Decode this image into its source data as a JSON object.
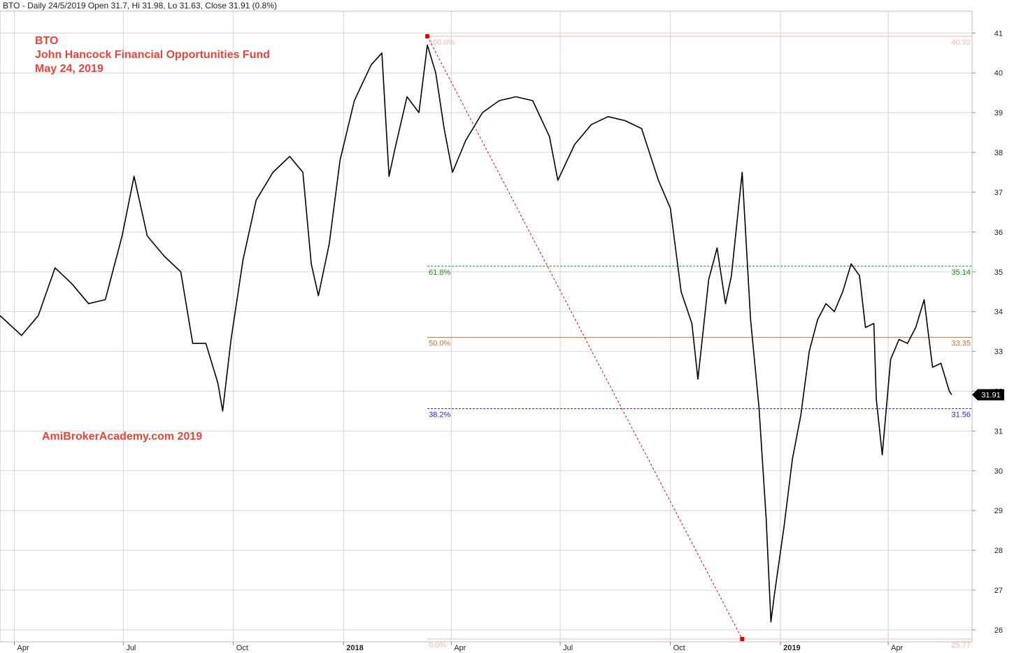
{
  "header": "BTO - Daily 24/5/2019 Open 31.7, Hi 31.98, Lo 31.63, Close 31.91 (0.8%)",
  "annotations": {
    "ticker": "BTO",
    "fund_name": "John Hancock Financial Opportunities Fund",
    "date": "May 24, 2019",
    "watermark": "AmiBrokerAcademy.com  2019"
  },
  "colors": {
    "price": "#000000",
    "grid": "#d4d4d4",
    "fib_100": "#ffb3b3",
    "fib_618": "#1a8f1a",
    "fib_50": "#c87533",
    "fib_382": "#2323d8",
    "fib_0": "#ffb3b3",
    "fib_connector": "#e00000",
    "annotation": "#e8443a",
    "last_price_bg": "#000000"
  },
  "chart_data": {
    "type": "line",
    "title": "",
    "xlabel": "",
    "ylabel": "",
    "ylim": [
      25.7,
      41.55
    ],
    "y_ticks": [
      "26",
      "27",
      "28",
      "29",
      "30",
      "31",
      "32",
      "33",
      "34",
      "35",
      "36",
      "37",
      "38",
      "39",
      "40",
      "41"
    ],
    "x_ticks": [
      {
        "label": "Apr",
        "date": "2017-04-01"
      },
      {
        "label": "Jul",
        "date": "2017-07-01"
      },
      {
        "label": "Oct",
        "date": "2017-10-01"
      },
      {
        "label": "2018",
        "date": "2018-01-01",
        "bold": true
      },
      {
        "label": "Apr",
        "date": "2018-04-01"
      },
      {
        "label": "Jul",
        "date": "2018-07-01"
      },
      {
        "label": "Oct",
        "date": "2018-10-01"
      },
      {
        "label": "2019",
        "date": "2019-01-01",
        "bold": true
      },
      {
        "label": "Apr",
        "date": "2019-04-01"
      }
    ],
    "x_range": [
      "2017-03-20",
      "2019-06-10"
    ],
    "series": [
      {
        "points": [
          [
            "2017-03-20",
            33.9
          ],
          [
            "2017-04-07",
            33.4
          ],
          [
            "2017-04-21",
            33.9
          ],
          [
            "2017-05-05",
            35.1
          ],
          [
            "2017-05-19",
            34.7
          ],
          [
            "2017-06-02",
            34.2
          ],
          [
            "2017-06-16",
            34.3
          ],
          [
            "2017-06-30",
            35.9
          ],
          [
            "2017-07-10",
            37.4
          ],
          [
            "2017-07-21",
            35.9
          ],
          [
            "2017-08-04",
            35.4
          ],
          [
            "2017-08-18",
            35.0
          ],
          [
            "2017-08-28",
            33.2
          ],
          [
            "2017-09-08",
            33.2
          ],
          [
            "2017-09-18",
            32.2
          ],
          [
            "2017-09-22",
            31.5
          ],
          [
            "2017-09-29",
            33.3
          ],
          [
            "2017-10-09",
            35.3
          ],
          [
            "2017-10-20",
            36.8
          ],
          [
            "2017-11-03",
            37.5
          ],
          [
            "2017-11-17",
            37.9
          ],
          [
            "2017-11-28",
            37.5
          ],
          [
            "2017-12-05",
            35.2
          ],
          [
            "2017-12-11",
            34.4
          ],
          [
            "2017-12-20",
            35.7
          ],
          [
            "2017-12-29",
            37.8
          ],
          [
            "2018-01-10",
            39.3
          ],
          [
            "2018-01-24",
            40.2
          ],
          [
            "2018-02-02",
            40.5
          ],
          [
            "2018-02-08",
            37.4
          ],
          [
            "2018-02-13",
            38.1
          ],
          [
            "2018-02-23",
            39.4
          ],
          [
            "2018-03-05",
            39.0
          ],
          [
            "2018-03-12",
            40.7
          ],
          [
            "2018-03-19",
            40.0
          ],
          [
            "2018-03-26",
            38.6
          ],
          [
            "2018-04-02",
            37.5
          ],
          [
            "2018-04-13",
            38.3
          ],
          [
            "2018-04-27",
            39.0
          ],
          [
            "2018-05-11",
            39.3
          ],
          [
            "2018-05-25",
            39.4
          ],
          [
            "2018-06-08",
            39.3
          ],
          [
            "2018-06-22",
            38.4
          ],
          [
            "2018-06-29",
            37.3
          ],
          [
            "2018-07-13",
            38.2
          ],
          [
            "2018-07-27",
            38.7
          ],
          [
            "2018-08-10",
            38.9
          ],
          [
            "2018-08-24",
            38.8
          ],
          [
            "2018-09-07",
            38.6
          ],
          [
            "2018-09-21",
            37.3
          ],
          [
            "2018-10-01",
            36.6
          ],
          [
            "2018-10-10",
            34.5
          ],
          [
            "2018-10-19",
            33.7
          ],
          [
            "2018-10-24",
            32.3
          ],
          [
            "2018-11-02",
            34.8
          ],
          [
            "2018-11-09",
            35.6
          ],
          [
            "2018-11-16",
            34.2
          ],
          [
            "2018-11-21",
            34.9
          ],
          [
            "2018-11-30",
            37.5
          ],
          [
            "2018-12-07",
            33.8
          ],
          [
            "2018-12-14",
            31.6
          ],
          [
            "2018-12-20",
            28.8
          ],
          [
            "2018-12-24",
            26.2
          ],
          [
            "2018-12-27",
            26.9
          ],
          [
            "2019-01-04",
            28.6
          ],
          [
            "2019-01-11",
            30.3
          ],
          [
            "2019-01-18",
            31.4
          ],
          [
            "2019-01-25",
            33.0
          ],
          [
            "2019-02-01",
            33.8
          ],
          [
            "2019-02-08",
            34.2
          ],
          [
            "2019-02-15",
            34.0
          ],
          [
            "2019-02-22",
            34.5
          ],
          [
            "2019-03-01",
            35.2
          ],
          [
            "2019-03-08",
            34.9
          ],
          [
            "2019-03-13",
            33.6
          ],
          [
            "2019-03-20",
            33.7
          ],
          [
            "2019-03-22",
            31.8
          ],
          [
            "2019-03-27",
            30.4
          ],
          [
            "2019-04-03",
            32.8
          ],
          [
            "2019-04-10",
            33.3
          ],
          [
            "2019-04-17",
            33.2
          ],
          [
            "2019-04-24",
            33.6
          ],
          [
            "2019-05-01",
            34.3
          ],
          [
            "2019-05-08",
            32.6
          ],
          [
            "2019-05-15",
            32.7
          ],
          [
            "2019-05-22",
            32.0
          ],
          [
            "2019-05-24",
            31.91
          ]
        ]
      }
    ],
    "fibonacci": {
      "start_date": "2018-03-12",
      "end_date": "2018-11-30",
      "high": 40.92,
      "low": 25.77,
      "levels": [
        {
          "pct": "100.0%",
          "value": 40.92,
          "value_label": "40.92",
          "color_key": "fib_100",
          "dashed": false
        },
        {
          "pct": "61.8%",
          "value": 35.14,
          "value_label": "35.14",
          "color_key": "fib_618",
          "dashed": true
        },
        {
          "pct": "50.0%",
          "value": 33.35,
          "value_label": "33.35",
          "color_key": "fib_50",
          "dashed": false
        },
        {
          "pct": "38.2%",
          "value": 31.56,
          "value_label": "31.56",
          "color_key": "fib_382",
          "dashed": true
        },
        {
          "pct": "0.0%",
          "value": 25.77,
          "value_label": "25.77",
          "color_key": "fib_0",
          "dashed": false
        }
      ]
    },
    "last_price": {
      "value": 31.91,
      "label": "31.91"
    },
    "grid": true
  }
}
